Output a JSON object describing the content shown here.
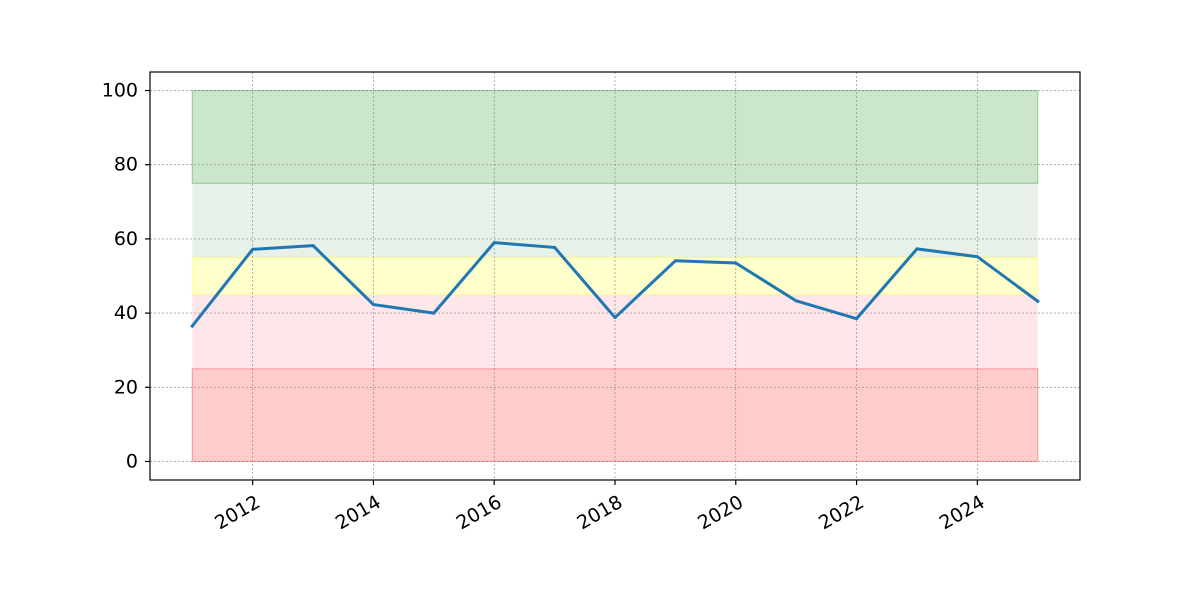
{
  "chart_data": {
    "type": "line",
    "title": "",
    "xlabel": "",
    "ylabel": "",
    "x": [
      2011,
      2012,
      2013,
      2014,
      2015,
      2016,
      2017,
      2018,
      2019,
      2020,
      2021,
      2022,
      2023,
      2024,
      2025
    ],
    "series": [
      {
        "values": [
          36.5,
          57.2,
          58.2,
          42.3,
          40.0,
          59.0,
          57.7,
          38.8,
          54.1,
          53.5,
          43.3,
          38.5,
          57.3,
          55.2,
          43.2
        ],
        "color": "#1f77b4"
      }
    ],
    "bands": [
      {
        "from": 0,
        "to": 25,
        "color": "#ff0000",
        "opacity": 0.2,
        "edge": true
      },
      {
        "from": 25,
        "to": 45,
        "color": "#ffb6c1",
        "opacity": 0.35,
        "edge": false
      },
      {
        "from": 45,
        "to": 55,
        "color": "#ffff00",
        "opacity": 0.2,
        "edge": true
      },
      {
        "from": 55,
        "to": 75,
        "color": "#90c090",
        "opacity": 0.22,
        "edge": false
      },
      {
        "from": 75,
        "to": 100,
        "color": "#008000",
        "opacity": 0.2,
        "edge": true
      }
    ],
    "xlim": [
      2010.3,
      2025.7
    ],
    "ylim": [
      -5,
      105
    ],
    "xticks": [
      "2012",
      "2014",
      "2016",
      "2018",
      "2020",
      "2022",
      "2024"
    ],
    "yticks": [
      "0",
      "20",
      "40",
      "60",
      "80",
      "100"
    ],
    "grid": true,
    "legend": "none"
  }
}
